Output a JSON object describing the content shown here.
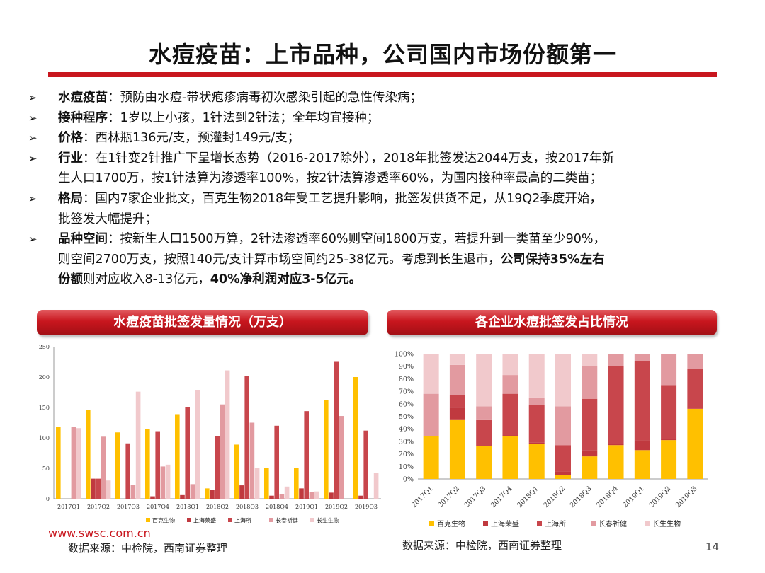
{
  "title": "水痘疫苗：上市品种，公司国内市场份额第一",
  "bullets": [
    {
      "lines": [
        [
          {
            "t": "水痘疫苗",
            "b": true
          },
          {
            "t": "：预防由水痘-带状疱疹病毒初次感染引起的急性传染病；"
          }
        ]
      ]
    },
    {
      "lines": [
        [
          {
            "t": "接种程序",
            "b": true
          },
          {
            "t": "：1岁以上小孩，1针法到2针法；全年均宜接种；"
          }
        ]
      ]
    },
    {
      "lines": [
        [
          {
            "t": "价格",
            "b": true
          },
          {
            "t": "：西林瓶136元/支，预灌封149元/支；"
          }
        ]
      ]
    },
    {
      "lines": [
        [
          {
            "t": "行业",
            "b": true
          },
          {
            "t": "：在1针变2针推广下呈增长态势（2016-2017除外），2018年批签发达2044万支，按2017年新"
          }
        ],
        [
          {
            "t": "生人口1700万，按1针法算为渗透率100%，按2针法算渗透率60%，为国内接种率最高的二类苗；"
          }
        ]
      ]
    },
    {
      "lines": [
        [
          {
            "t": "格局",
            "b": true
          },
          {
            "t": "：国内7家企业批文，百克生物2018年受工艺提升影响，批签发供货不足，从19Q2季度开始，"
          }
        ],
        [
          {
            "t": "批签发大幅提升；"
          }
        ]
      ]
    },
    {
      "lines": [
        [
          {
            "t": "品种空间",
            "b": true
          },
          {
            "t": "：按新生人口1500万算，2针法渗透率60%则空间1800万支，若提升到一类苗至少90%，"
          }
        ],
        [
          {
            "t": "则空间2700万支，按照140元/支计算市场空间约25-38亿元。考虑到长生退市，"
          },
          {
            "t": "公司保持35%左右",
            "b": true
          }
        ],
        [
          {
            "t": "份额",
            "b": true
          },
          {
            "t": "则对应收入8-13亿元，"
          },
          {
            "t": "40%净利润对应3-5亿元。",
            "b": true
          }
        ]
      ]
    }
  ],
  "left_panel_title": "水痘疫苗批签发量情况（万支）",
  "right_panel_title": "各企业水痘批签发占比情况",
  "source_left": "数据来源：中检院，西南证券整理",
  "source_right": "数据来源：中检院，西南证券整理",
  "url": "www.swsc.com.cn",
  "page_number": "14",
  "legend": [
    "百克生物",
    "上海荣盛",
    "上海所",
    "长春祈健",
    "长生生物"
  ],
  "colors": [
    "#ffc000",
    "#c0393f",
    "#c8464c",
    "#e29aa0",
    "#f1c9cc"
  ],
  "chart_data": [
    {
      "type": "bar",
      "title": "水痘疫苗批签发量情况（万支）",
      "categories": [
        "2017Q1",
        "2017Q2",
        "2017Q3",
        "2017Q4",
        "2018Q1",
        "2018Q2",
        "2018Q3",
        "2018Q4",
        "2019Q1",
        "2019Q2",
        "2019Q3"
      ],
      "ylim": [
        0,
        250
      ],
      "yticks": [
        0,
        50,
        100,
        150,
        200,
        250
      ],
      "series": [
        {
          "name": "百克生物",
          "values": [
            118,
            146,
            109,
            114,
            139,
            17,
            89,
            51,
            51,
            162,
            200
          ]
        },
        {
          "name": "上海荣盛",
          "values": [
            0,
            33,
            0,
            4,
            6,
            15,
            22,
            5,
            17,
            10,
            5
          ]
        },
        {
          "name": "上海所",
          "values": [
            0,
            33,
            91,
            111,
            150,
            103,
            202,
            120,
            144,
            225,
            112
          ]
        },
        {
          "name": "长春祈健",
          "values": [
            118,
            102,
            23,
            53,
            24,
            155,
            125,
            8,
            11,
            136,
            0
          ]
        },
        {
          "name": "长生生物",
          "values": [
            116,
            30,
            176,
            56,
            178,
            211,
            50,
            20,
            12,
            0,
            42
          ]
        }
      ]
    },
    {
      "type": "bar",
      "stacked": true,
      "title": "各企业水痘批签发占比情况",
      "categories": [
        "2017Q1",
        "2017Q2",
        "2017Q3",
        "2017Q4",
        "2018Q1",
        "2018Q2",
        "2018Q3",
        "2018Q4",
        "2019Q1",
        "2019Q2",
        "2019Q3"
      ],
      "ylim": [
        0,
        100
      ],
      "yticks": [
        "0%",
        "10%",
        "20%",
        "30%",
        "40%",
        "50%",
        "60%",
        "70%",
        "80%",
        "90%",
        "100%"
      ],
      "series": [
        {
          "name": "百克生物",
          "values": [
            34,
            47,
            26,
            34,
            28,
            3,
            18,
            27,
            23,
            31,
            56
          ]
        },
        {
          "name": "上海荣盛",
          "values": [
            0,
            10,
            0,
            1,
            1,
            3,
            5,
            1,
            8,
            1,
            0
          ]
        },
        {
          "name": "上海所",
          "values": [
            0,
            10,
            21,
            33,
            30,
            21,
            41,
            62,
            63,
            43,
            32
          ]
        },
        {
          "name": "长春祈健",
          "values": [
            34,
            24,
            11,
            15,
            6,
            31,
            26,
            10,
            6,
            25,
            12
          ]
        },
        {
          "name": "长生生物",
          "values": [
            32,
            9,
            42,
            17,
            35,
            42,
            10,
            0,
            0,
            0,
            0
          ]
        }
      ]
    }
  ]
}
